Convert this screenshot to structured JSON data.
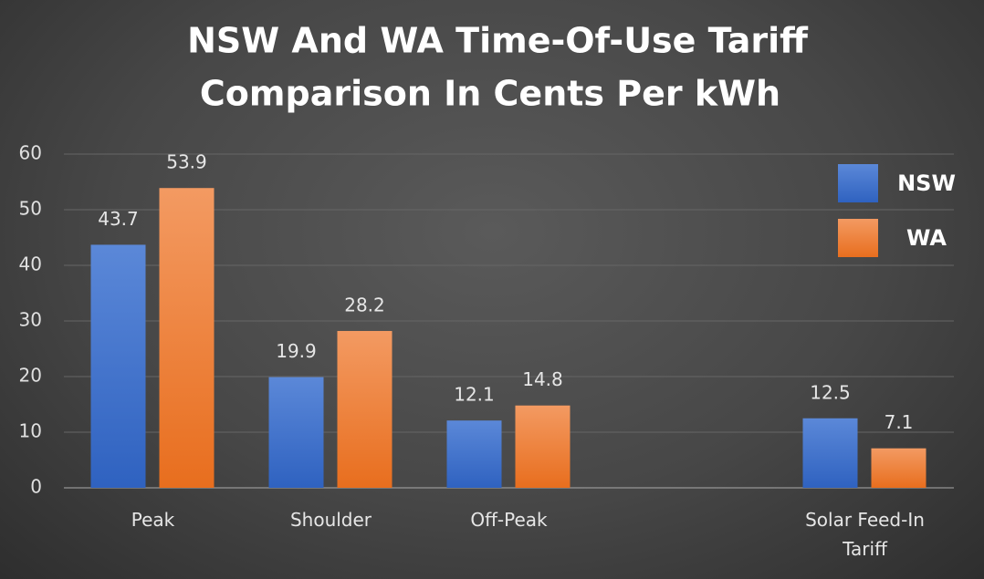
{
  "chart_data": {
    "type": "bar",
    "title": [
      "NSW And WA Time-Of-Use Tariff",
      "Comparison In Cents Per kWh"
    ],
    "categories": [
      "Peak",
      "Shoulder",
      "Off-Peak",
      null,
      "Solar Feed-In Tariff"
    ],
    "series": [
      {
        "name": "NSW",
        "color": "#4472c4",
        "values": [
          43.7,
          19.9,
          12.1,
          null,
          12.5
        ]
      },
      {
        "name": "WA",
        "color": "#ed7d31",
        "values": [
          53.9,
          28.2,
          14.8,
          null,
          7.1
        ]
      }
    ],
    "ylim": [
      0,
      60
    ],
    "yticks": [
      0,
      10,
      20,
      30,
      40,
      50,
      60
    ],
    "grid": true,
    "legend": "top-right"
  }
}
